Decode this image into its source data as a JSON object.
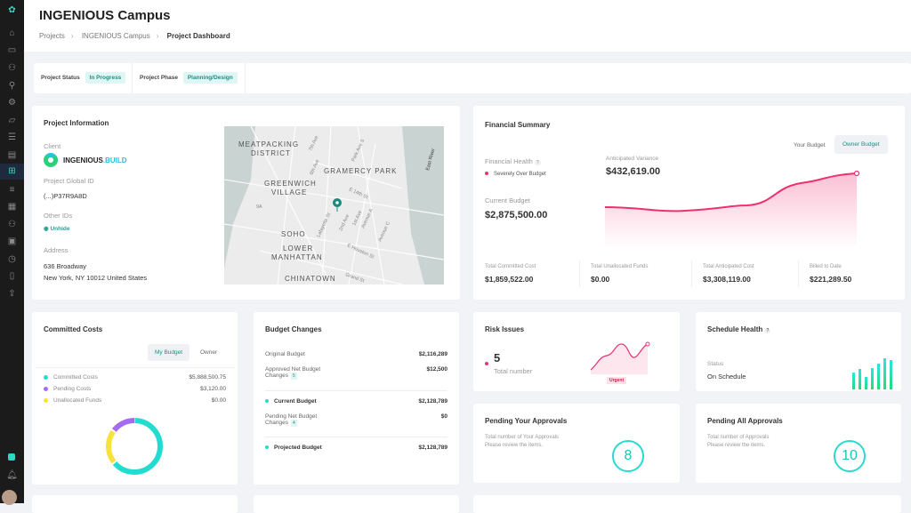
{
  "sidebar": {
    "icons": [
      "logo-icon",
      "home-icon",
      "inbox-icon",
      "users-icon",
      "user-add-icon",
      "settings-icon",
      "folder-icon",
      "list-icon",
      "document-icon",
      "dashboard-icon",
      "checklist-icon",
      "table-icon",
      "team-icon",
      "calendar-icon",
      "clock-icon",
      "mouse-icon",
      "upload-icon"
    ],
    "active": "dashboard-icon",
    "accent": "#3fd0c4"
  },
  "header": {
    "title": "INGENIOUS Campus",
    "breadcrumb": [
      "Projects",
      "INGENIOUS Campus",
      "Project Dashboard"
    ]
  },
  "status_bar": {
    "status_label": "Project Status",
    "status_value": "In Progress",
    "phase_label": "Project Phase",
    "phase_value": "Planning/Design"
  },
  "project_info": {
    "title": "Project Information",
    "client_label": "Client",
    "client_logo": "INGENIOUS.BUILD",
    "global_id_label": "Project Global ID",
    "global_id": "(...)P37R9A8D",
    "other_ids_label": "Other IDs",
    "unhide": "Unhide",
    "address_label": "Address",
    "address_1": "636 Broadway",
    "address_2": "New York, NY 10012 United States",
    "map_labels": [
      "MEATPACKING",
      "DISTRICT",
      "GRAMERCY PARK",
      "GREENWICH",
      "VILLAGE",
      "SOHO",
      "LOWER",
      "MANHATTAN",
      "CHINATOWN",
      "East River",
      "7th Ave",
      "6th Ave",
      "Park Ave S",
      "E 14th St",
      "Lafayette St",
      "2nd Ave",
      "1st Ave",
      "Avenue A",
      "Avenue C",
      "E Houston St",
      "Grand St",
      "9A"
    ]
  },
  "financial": {
    "title": "Financial Summary",
    "tab_your": "Your Budget",
    "tab_owner": "Owner Budget",
    "health_label": "Financial Health",
    "health_help": "?",
    "health_value": "Severely Over Budget",
    "current_budget_label": "Current Budget",
    "current_budget": "$2,875,500.00",
    "variance_label": "Anticipated Variance",
    "variance": "$432,619.00",
    "stats": [
      {
        "label": "Total Committed Cost",
        "value": "$1,859,522.00"
      },
      {
        "label": "Total Unallocated Funds",
        "value": "$0.00"
      },
      {
        "label": "Total Anticipated Cost",
        "value": "$3,308,119.00"
      },
      {
        "label": "Billed to Date",
        "value": "$221,289.50"
      }
    ],
    "line_color": "#f0306e"
  },
  "committed": {
    "title": "Committed Costs",
    "tab_my": "My Budget",
    "tab_owner": "Owner",
    "items": [
      {
        "label": "Committed Costs",
        "value": "$5,888,500.75",
        "color": "#22dccf"
      },
      {
        "label": "Pending Costs",
        "value": "$3,120.00",
        "color": "#a46cf2"
      },
      {
        "label": "Unallocated Funds",
        "value": "$0.00",
        "color": "#f5e23a"
      }
    ]
  },
  "budget_changes": {
    "title": "Budget Changes",
    "rows": [
      {
        "label": "Original Budget",
        "value": "$2,116,289"
      },
      {
        "label": "Approved Net Budget",
        "label2": "Changes",
        "badge": "5",
        "value": "$12,500"
      },
      {
        "label": "Current Budget",
        "value": "$2,128,789"
      },
      {
        "label": "Pending Net Budget",
        "label2": "Changes",
        "badge": "4",
        "value": "$0"
      },
      {
        "label": "Projected Budget",
        "value": "$2,128,789"
      }
    ]
  },
  "risk": {
    "title": "Risk Issues",
    "count": "5",
    "count_label": "Total number",
    "tag": "Urgent"
  },
  "schedule": {
    "title": "Schedule Health",
    "help": "?",
    "status_label": "Status",
    "status": "On Schedule"
  },
  "pending_yours": {
    "title": "Pending Your Approvals",
    "desc1": "Total number of Your Approvals",
    "desc2": "Please review the items.",
    "count": "8"
  },
  "pending_all": {
    "title": "Pending All Approvals",
    "desc1": "Total number of Approvals",
    "desc2": "Please review the items.",
    "count": "10"
  }
}
